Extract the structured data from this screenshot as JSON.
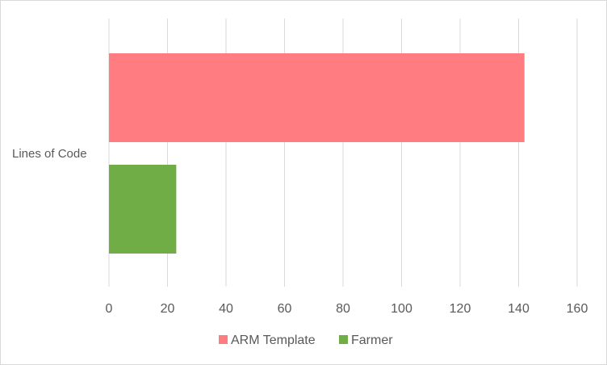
{
  "chart_data": {
    "type": "bar",
    "orientation": "horizontal",
    "categories": [
      "Lines of Code"
    ],
    "series": [
      {
        "name": "ARM Template",
        "values": [
          142
        ],
        "color": "#FF7C80"
      },
      {
        "name": "Farmer",
        "values": [
          23
        ],
        "color": "#70AD47"
      }
    ],
    "xlim": [
      0,
      160
    ],
    "xticks": [
      0,
      20,
      40,
      60,
      80,
      100,
      120,
      140,
      160
    ],
    "tick_labels": [
      "0",
      "20",
      "40",
      "60",
      "80",
      "100",
      "120",
      "140",
      "160"
    ],
    "grid": true,
    "legend_position": "bottom",
    "title": "",
    "xlabel": "",
    "ylabel": ""
  }
}
